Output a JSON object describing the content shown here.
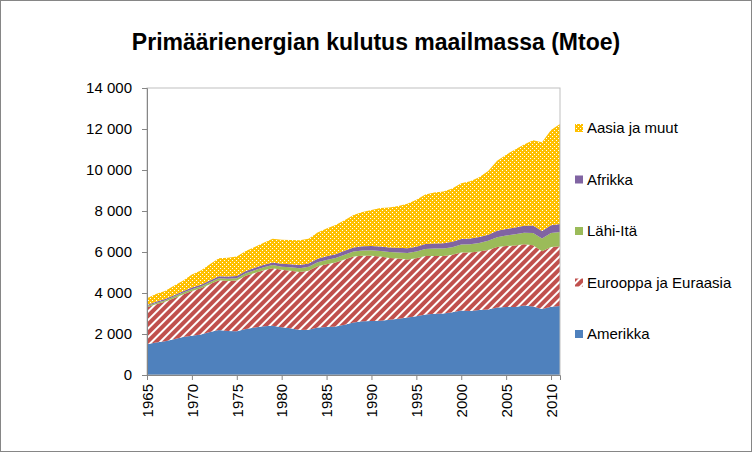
{
  "chart_data": {
    "type": "area",
    "stacked": true,
    "title": "Primäärienergian kulutus maailmassa (Mtoe)",
    "x": [
      1965,
      1966,
      1967,
      1968,
      1969,
      1970,
      1971,
      1972,
      1973,
      1974,
      1975,
      1976,
      1977,
      1978,
      1979,
      1980,
      1981,
      1982,
      1983,
      1984,
      1985,
      1986,
      1987,
      1988,
      1989,
      1990,
      1991,
      1992,
      1993,
      1994,
      1995,
      1996,
      1997,
      1998,
      1999,
      2000,
      2001,
      2002,
      2003,
      2004,
      2005,
      2006,
      2007,
      2008,
      2009,
      2010,
      2011
    ],
    "xlim": [
      1965,
      2011
    ],
    "xticks": [
      1965,
      1970,
      1975,
      1980,
      1985,
      1990,
      1995,
      2000,
      2005,
      2010
    ],
    "ylim": [
      0,
      14000
    ],
    "yticks": [
      0,
      {
        "value": 2000,
        "label": "2 000"
      },
      {
        "value": 4000,
        "label": "4 000"
      },
      {
        "value": 6000,
        "label": "6 000"
      },
      {
        "value": 8000,
        "label": "8 000"
      },
      {
        "value": 10000,
        "label": "10 000"
      },
      {
        "value": 12000,
        "label": "12 000"
      },
      {
        "value": 14000,
        "label": "14 000"
      }
    ],
    "grid": false,
    "legend": "right",
    "series": [
      {
        "name": "Amerikka",
        "color": "#4F81BD",
        "values": [
          1500,
          1580,
          1650,
          1750,
          1850,
          1920,
          1980,
          2100,
          2200,
          2150,
          2130,
          2250,
          2320,
          2380,
          2400,
          2330,
          2280,
          2200,
          2210,
          2320,
          2340,
          2370,
          2450,
          2560,
          2620,
          2640,
          2650,
          2700,
          2750,
          2810,
          2860,
          2950,
          2990,
          3000,
          3060,
          3150,
          3120,
          3170,
          3200,
          3290,
          3320,
          3320,
          3390,
          3340,
          3220,
          3330,
          3360
        ]
      },
      {
        "name": "Eurooppa ja Euraasia",
        "color": "#C0504D",
        "values": [
          1800,
          1870,
          1920,
          2000,
          2080,
          2180,
          2250,
          2330,
          2420,
          2440,
          2480,
          2590,
          2660,
          2730,
          2810,
          2800,
          2810,
          2830,
          2880,
          2980,
          3060,
          3120,
          3190,
          3220,
          3200,
          3180,
          3130,
          3010,
          2930,
          2830,
          2830,
          2860,
          2820,
          2800,
          2800,
          2820,
          2850,
          2850,
          2900,
          2950,
          2970,
          3000,
          2990,
          2990,
          2820,
          2920,
          2920
        ]
      },
      {
        "name": "Lähi-Itä",
        "color": "#9BBB59",
        "values": [
          60,
          65,
          70,
          75,
          80,
          85,
          90,
          95,
          105,
          110,
          115,
          125,
          135,
          145,
          150,
          155,
          165,
          175,
          185,
          200,
          210,
          220,
          230,
          245,
          255,
          260,
          270,
          285,
          300,
          315,
          330,
          340,
          355,
          365,
          375,
          390,
          405,
          425,
          445,
          480,
          510,
          540,
          560,
          600,
          620,
          680,
          700
        ]
      },
      {
        "name": "Afrikka",
        "color": "#8064A2",
        "values": [
          60,
          63,
          66,
          70,
          75,
          80,
          85,
          90,
          95,
          100,
          105,
          110,
          118,
          125,
          133,
          140,
          150,
          155,
          160,
          170,
          180,
          185,
          190,
          200,
          205,
          210,
          215,
          220,
          225,
          230,
          240,
          245,
          250,
          260,
          265,
          270,
          280,
          285,
          300,
          315,
          325,
          330,
          345,
          360,
          365,
          375,
          380
        ]
      },
      {
        "name": "Aasia ja muut",
        "color": "#FFC000",
        "values": [
          330,
          372,
          394,
          455,
          515,
          635,
          695,
          785,
          880,
          920,
          950,
          975,
          1017,
          1070,
          1157,
          1175,
          1175,
          1210,
          1215,
          1280,
          1360,
          1425,
          1490,
          1575,
          1670,
          1760,
          1885,
          1955,
          2045,
          2165,
          2290,
          2405,
          2485,
          2525,
          2600,
          2720,
          2795,
          2920,
          3105,
          3415,
          3625,
          3810,
          3965,
          4160,
          4325,
          4645,
          4890
        ]
      }
    ]
  }
}
